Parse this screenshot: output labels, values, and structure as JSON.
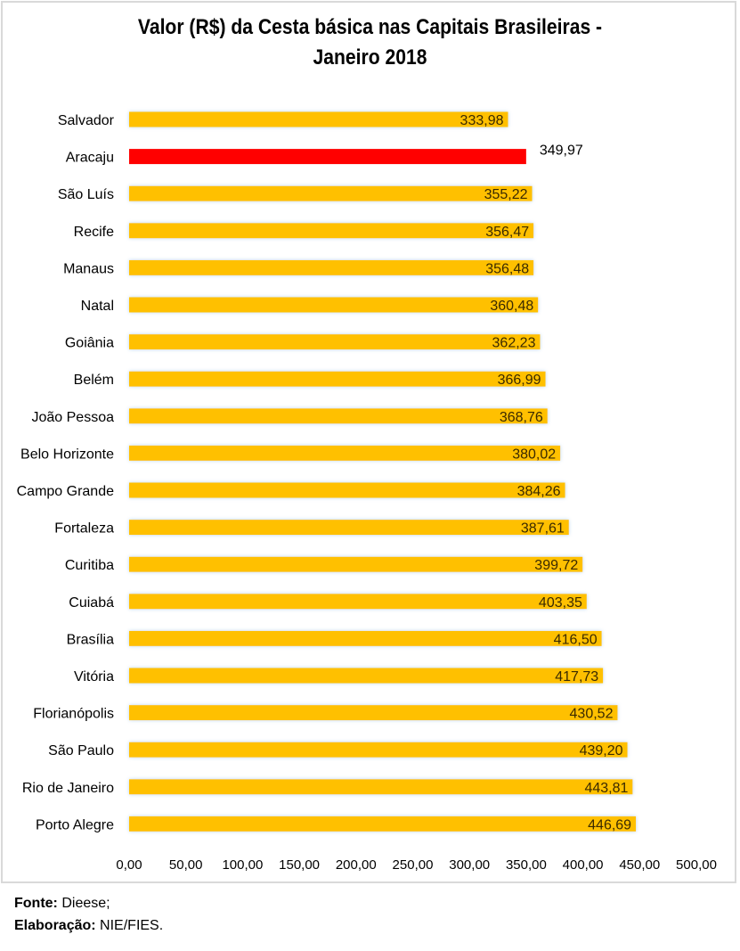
{
  "chart_data": {
    "type": "bar",
    "orientation": "horizontal",
    "title": "Valor (R$) da Cesta básica nas Capitais Brasileiras -",
    "title_line2": "Janeiro 2018",
    "xlabel": "",
    "ylabel": "",
    "xlim": [
      0,
      500
    ],
    "xticks": [
      0,
      50,
      100,
      150,
      200,
      250,
      300,
      350,
      400,
      450,
      500
    ],
    "xtick_labels": [
      "0,00",
      "50,00",
      "100,00",
      "150,00",
      "200,00",
      "250,00",
      "300,00",
      "350,00",
      "400,00",
      "450,00",
      "500,00"
    ],
    "grid": false,
    "legend": "none",
    "categories": [
      "Salvador",
      "Aracaju",
      "São Luís",
      "Recife",
      "Manaus",
      "Natal",
      "Goiânia",
      "Belém",
      "João Pessoa",
      "Belo Horizonte",
      "Campo Grande",
      "Fortaleza",
      "Curitiba",
      "Cuiabá",
      "Brasília",
      "Vitória",
      "Florianópolis",
      "São Paulo",
      "Rio de Janeiro",
      "Porto Alegre"
    ],
    "values": [
      333.98,
      349.97,
      355.22,
      356.47,
      356.48,
      360.48,
      362.23,
      366.99,
      368.76,
      380.02,
      384.26,
      387.61,
      399.72,
      403.35,
      416.5,
      417.73,
      430.52,
      439.2,
      443.81,
      446.69
    ],
    "value_labels": [
      "333,98",
      "349,97",
      "355,22",
      "356,47",
      "356,48",
      "360,48",
      "362,23",
      "366,99",
      "368,76",
      "380,02",
      "384,26",
      "387,61",
      "399,72",
      "403,35",
      "416,50",
      "417,73",
      "430,52",
      "439,20",
      "443,81",
      "446,69"
    ],
    "highlight_category": "Aracaju",
    "colors": {
      "bar": "#ffc000",
      "highlight": "#ff0000",
      "glow": "#bdd7ee"
    }
  },
  "footer": {
    "source_label": "Fonte:",
    "source_value": "Dieese;",
    "credit_label": "Elaboração:",
    "credit_value": "NIE/FIES."
  }
}
